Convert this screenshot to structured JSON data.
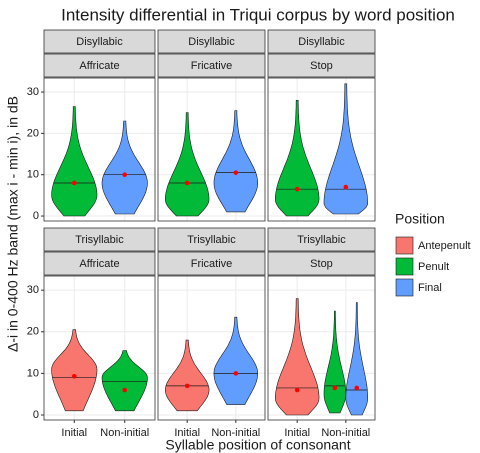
{
  "chart_data": {
    "type": "violin",
    "title": "Intensity differential in Triqui corpus by word position",
    "x_label": "Syllable position of consonant",
    "y_label": "Δ-i in 0-400 Hz band (max i - min i), in dB",
    "ylim": [
      -1.2,
      33.4
    ],
    "yticks": [
      0,
      10,
      20,
      30
    ],
    "grid": true,
    "legend_title": "Position",
    "legend_position": "right",
    "series": [
      {
        "name": "Antepenult",
        "color": "#f8766d"
      },
      {
        "name": "Penult",
        "color": "#00ba38"
      },
      {
        "name": "Final",
        "color": "#619cff"
      }
    ],
    "mean_color": "#ff0000",
    "panels": [
      {
        "strips": [
          "Disyllabic",
          "Affricate"
        ],
        "categories": [
          "Initial",
          "Non-initial"
        ],
        "violins": [
          {
            "category": "Initial",
            "position": "Penult",
            "min": 0,
            "max": 26.5,
            "mode": 5,
            "median": 8,
            "mean": 8
          },
          {
            "category": "Non-initial",
            "position": "Final",
            "min": 0.5,
            "max": 23,
            "mode": 8,
            "median": 10,
            "mean": 10
          }
        ]
      },
      {
        "strips": [
          "Disyllabic",
          "Fricative"
        ],
        "categories": [
          "Initial",
          "Non-initial"
        ],
        "violins": [
          {
            "category": "Initial",
            "position": "Penult",
            "min": 0,
            "max": 25,
            "mode": 4,
            "median": 8,
            "mean": 8
          },
          {
            "category": "Non-initial",
            "position": "Final",
            "min": 1,
            "max": 25.5,
            "mode": 8,
            "median": 10.5,
            "mean": 10.5
          }
        ]
      },
      {
        "strips": [
          "Disyllabic",
          "Stop"
        ],
        "categories": [
          "Initial",
          "Non-initial"
        ],
        "violins": [
          {
            "category": "Initial",
            "position": "Penult",
            "min": 0,
            "max": 28,
            "mode": 4,
            "median": 6.5,
            "mean": 6.5
          },
          {
            "category": "Non-initial",
            "position": "Final",
            "min": 0.5,
            "max": 32,
            "mode": 3,
            "median": 6.5,
            "mean": 7
          }
        ]
      },
      {
        "strips": [
          "Trisyllabic",
          "Affricate"
        ],
        "categories": [
          "Initial",
          "Non-initial"
        ],
        "violins": [
          {
            "category": "Initial",
            "position": "Antepenult",
            "min": 1,
            "max": 20.5,
            "mode": 11,
            "median": 9,
            "mean": 9.3
          },
          {
            "category": "Non-initial",
            "position": "Penult",
            "min": 1,
            "max": 15.5,
            "mode": 9,
            "median": 8,
            "mean": 6
          }
        ]
      },
      {
        "strips": [
          "Trisyllabic",
          "Fricative"
        ],
        "categories": [
          "Initial",
          "Non-initial"
        ],
        "violins": [
          {
            "category": "Initial",
            "position": "Antepenult",
            "min": 1,
            "max": 18,
            "mode": 6,
            "median": 7,
            "mean": 7
          },
          {
            "category": "Non-initial",
            "position": "Final",
            "min": 2.5,
            "max": 23.5,
            "mode": 10,
            "median": 10,
            "mean": 10
          }
        ]
      },
      {
        "strips": [
          "Trisyllabic",
          "Stop"
        ],
        "categories": [
          "Initial",
          "Non-initial"
        ],
        "violins": [
          {
            "category": "Initial",
            "position": "Antepenult",
            "min": 0,
            "max": 28,
            "mode": 4,
            "median": 6.5,
            "mean": 6
          },
          {
            "category": "Non-initial",
            "position": "Penult",
            "min": 0.5,
            "max": 25,
            "mode": 5,
            "median": 7,
            "mean": 6.5
          },
          {
            "category": "Non-initial",
            "position": "Final",
            "min": 0,
            "max": 27,
            "mode": 4,
            "median": 6,
            "mean": 6.5
          }
        ]
      }
    ]
  }
}
